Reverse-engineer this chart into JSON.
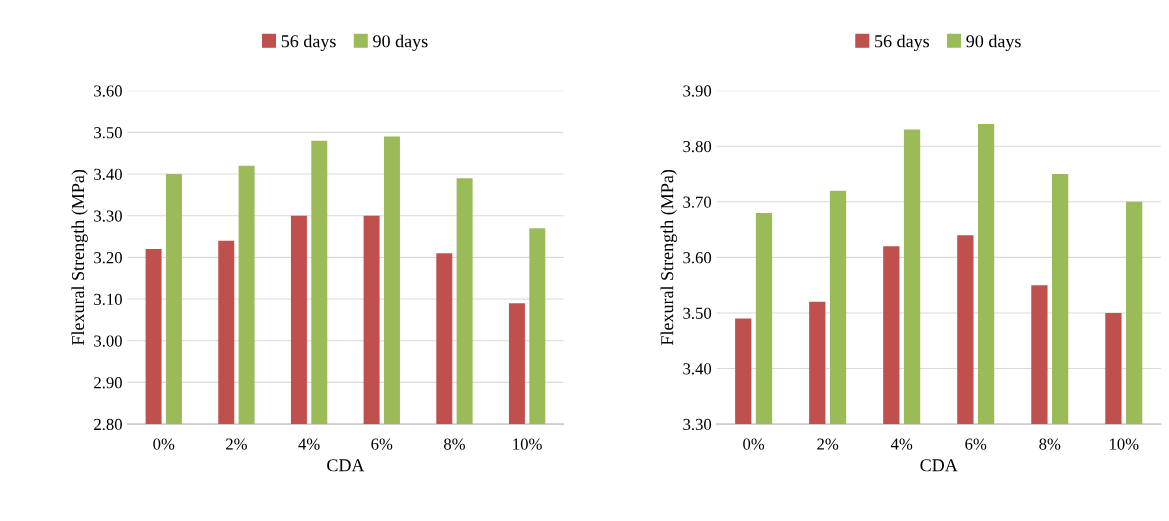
{
  "chart_data": [
    {
      "type": "bar",
      "xlabel": "CDA",
      "ylabel": "Flexural Strength (MPa)",
      "categories": [
        "0%",
        "2%",
        "4%",
        "6%",
        "8%",
        "10%"
      ],
      "series": [
        {
          "name": "56 days",
          "color": "#c0504d",
          "values": [
            3.22,
            3.24,
            3.3,
            3.3,
            3.21,
            3.09
          ]
        },
        {
          "name": "90 days",
          "color": "#9bbb59",
          "values": [
            3.4,
            3.42,
            3.48,
            3.49,
            3.39,
            3.27
          ]
        }
      ],
      "ylim": [
        2.8,
        3.6
      ],
      "yticks": [
        {
          "value": 2.8,
          "label": "2.80"
        },
        {
          "value": 2.9,
          "label": "2.90"
        },
        {
          "value": 3.0,
          "label": "3.00"
        },
        {
          "value": 3.1,
          "label": "3.10"
        },
        {
          "value": 3.2,
          "label": "3.20"
        },
        {
          "value": 3.3,
          "label": "3.30"
        },
        {
          "value": 3.4,
          "label": "3.40"
        },
        {
          "value": 3.5,
          "label": "3.50"
        },
        {
          "value": 3.6,
          "label": "3.60"
        }
      ],
      "grid": "y",
      "legend": "top"
    },
    {
      "type": "bar",
      "xlabel": "CDA",
      "ylabel": "Flexural Strength (MPa)",
      "categories": [
        "0%",
        "2%",
        "4%",
        "6%",
        "8%",
        "10%"
      ],
      "series": [
        {
          "name": "56 days",
          "color": "#c0504d",
          "values": [
            3.49,
            3.52,
            3.62,
            3.64,
            3.55,
            3.5
          ]
        },
        {
          "name": "90 days",
          "color": "#9bbb59",
          "values": [
            3.68,
            3.72,
            3.83,
            3.84,
            3.75,
            3.7
          ]
        }
      ],
      "ylim": [
        3.3,
        3.9
      ],
      "yticks": [
        {
          "value": 3.3,
          "label": "3.30"
        },
        {
          "value": 3.4,
          "label": "3.40"
        },
        {
          "value": 3.5,
          "label": "3.50"
        },
        {
          "value": 3.6,
          "label": "3.60"
        },
        {
          "value": 3.7,
          "label": "3.70"
        },
        {
          "value": 3.8,
          "label": "3.80"
        },
        {
          "value": 3.9,
          "label": "3.90"
        }
      ],
      "grid": "y",
      "legend": "top"
    }
  ]
}
